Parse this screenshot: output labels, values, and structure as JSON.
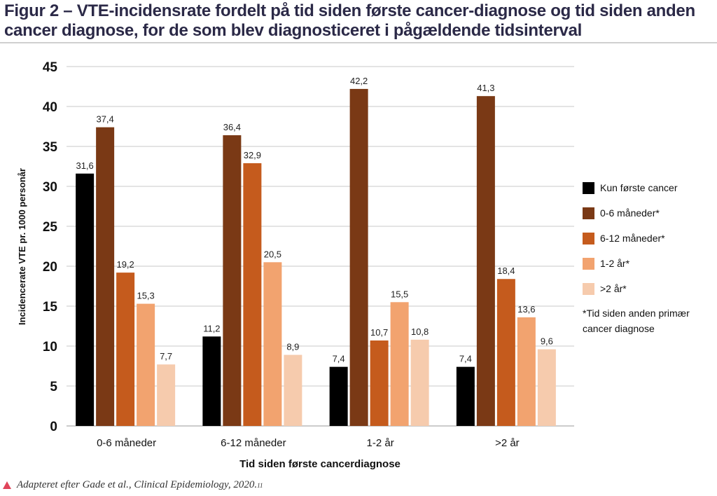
{
  "title": "Figur 2 – VTE-incidensrate fordelt på tid siden første cancer-diagnose og tid siden anden cancer diagnose, for de som blev diagnosticeret i pågældende tidsinterval",
  "source": {
    "text": "Adapteret efter Gade et al., Clinical Epidemiology, 2020.",
    "superscript": "11"
  },
  "chart_data": {
    "type": "bar",
    "title": "Figur 2 – VTE-incidensrate fordelt på tid siden første cancer-diagnose og tid siden anden cancer diagnose, for de som blev diagnosticeret i pågældende tidsinterval",
    "xlabel": "Tid siden første cancerdiagnose",
    "ylabel": "Incidencerate VTE pr. 1000 personår",
    "ylim": [
      0,
      45
    ],
    "yticks": [
      0,
      5,
      10,
      15,
      20,
      25,
      30,
      35,
      40,
      45
    ],
    "grid": true,
    "legend_position": "right",
    "legend_note": "*Tid siden anden primær cancer diagnose",
    "categories": [
      "0-6 måneder",
      "6-12 måneder",
      "1-2 år",
      ">2 år"
    ],
    "series": [
      {
        "name": "Kun første cancer",
        "color": "#000000",
        "values": [
          31.6,
          11.2,
          7.4,
          7.4
        ],
        "labels": [
          "31,6",
          "11,2",
          "7,4",
          "7,4"
        ]
      },
      {
        "name": "0-6 måneder*",
        "color": "#7a3915",
        "values": [
          37.4,
          36.4,
          42.2,
          41.3
        ],
        "labels": [
          "37,4",
          "36,4",
          "42,2",
          "41,3"
        ]
      },
      {
        "name": "6-12 måneder*",
        "color": "#c55b1d",
        "values": [
          19.2,
          32.9,
          10.7,
          18.4
        ],
        "labels": [
          "19,2",
          "32,9",
          "10,7",
          "18,4"
        ]
      },
      {
        "name": "1-2 år*",
        "color": "#f2a36f",
        "values": [
          15.3,
          20.5,
          15.5,
          13.6
        ],
        "labels": [
          "15,3",
          "20,5",
          "15,5",
          "13,6"
        ]
      },
      {
        "name": ">2 år*",
        "color": "#f6cbad",
        "values": [
          7.7,
          8.9,
          10.8,
          9.6
        ],
        "labels": [
          "7,7",
          "8,9",
          "10,8",
          "9,6"
        ]
      }
    ]
  }
}
